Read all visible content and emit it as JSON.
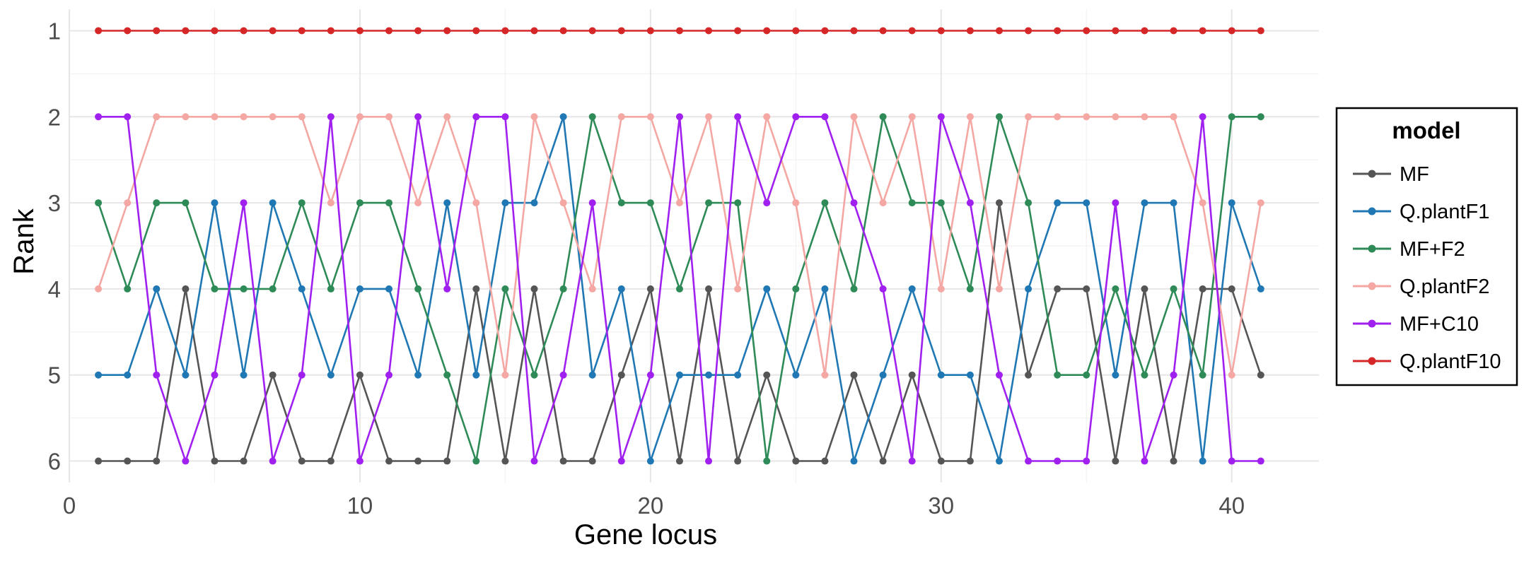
{
  "chart_data": {
    "type": "line",
    "xlabel": "Gene locus",
    "ylabel": "Rank",
    "xlim": [
      0,
      43
    ],
    "ylim": [
      6.25,
      0.75
    ],
    "y_reversed": true,
    "x_ticks": [
      0,
      10,
      20,
      30,
      40
    ],
    "x_tick_labels": [
      "0",
      "10",
      "20",
      "30",
      "40"
    ],
    "y_ticks": [
      1,
      2,
      3,
      4,
      5,
      6
    ],
    "y_tick_labels": [
      "1",
      "2",
      "3",
      "4",
      "5",
      "6"
    ],
    "grid": true,
    "legend": {
      "title": "model",
      "position": "right"
    },
    "x": [
      1,
      2,
      3,
      4,
      5,
      6,
      7,
      8,
      9,
      10,
      11,
      12,
      13,
      14,
      15,
      16,
      17,
      18,
      19,
      20,
      21,
      22,
      23,
      24,
      25,
      26,
      27,
      28,
      29,
      30,
      31,
      32,
      33,
      34,
      35,
      36,
      37,
      38,
      39,
      40,
      41
    ],
    "series": [
      {
        "name": "MF",
        "color": "#555555",
        "values": [
          6,
          6,
          6,
          4,
          6,
          6,
          5,
          6,
          6,
          5,
          6,
          6,
          6,
          4,
          6,
          4,
          6,
          6,
          5,
          4,
          6,
          4,
          6,
          5,
          6,
          6,
          5,
          6,
          5,
          6,
          6,
          3,
          5,
          4,
          4,
          6,
          4,
          6,
          4,
          4,
          5
        ]
      },
      {
        "name": "Q.plantF1",
        "color": "#1f78b4",
        "values": [
          5,
          5,
          4,
          5,
          3,
          5,
          3,
          4,
          5,
          4,
          4,
          5,
          3,
          5,
          3,
          3,
          2,
          5,
          4,
          6,
          5,
          5,
          5,
          4,
          5,
          4,
          6,
          5,
          4,
          5,
          5,
          6,
          4,
          3,
          3,
          5,
          3,
          3,
          6,
          3,
          4
        ]
      },
      {
        "name": "MF+F2",
        "color": "#2e8b57",
        "values": [
          3,
          4,
          3,
          3,
          4,
          4,
          4,
          3,
          4,
          3,
          3,
          4,
          5,
          6,
          4,
          5,
          4,
          2,
          3,
          3,
          4,
          3,
          3,
          6,
          4,
          3,
          4,
          2,
          3,
          3,
          4,
          2,
          3,
          5,
          5,
          4,
          5,
          4,
          5,
          2,
          2
        ]
      },
      {
        "name": "Q.plantF2",
        "color": "#f4a7a3",
        "values": [
          4,
          3,
          2,
          2,
          2,
          2,
          2,
          2,
          3,
          2,
          2,
          3,
          2,
          3,
          5,
          2,
          3,
          4,
          2,
          2,
          3,
          2,
          4,
          2,
          3,
          5,
          2,
          3,
          2,
          4,
          2,
          4,
          2,
          2,
          2,
          2,
          2,
          2,
          3,
          5,
          3
        ]
      },
      {
        "name": "MF+C10",
        "color": "#a020f0",
        "values": [
          2,
          2,
          5,
          6,
          5,
          3,
          6,
          5,
          2,
          6,
          5,
          2,
          4,
          2,
          2,
          6,
          5,
          3,
          6,
          5,
          2,
          6,
          2,
          3,
          2,
          2,
          3,
          4,
          6,
          2,
          3,
          5,
          6,
          6,
          6,
          3,
          6,
          5,
          2,
          6,
          6
        ]
      },
      {
        "name": "Q.plantF10",
        "color": "#d62728",
        "values": [
          1,
          1,
          1,
          1,
          1,
          1,
          1,
          1,
          1,
          1,
          1,
          1,
          1,
          1,
          1,
          1,
          1,
          1,
          1,
          1,
          1,
          1,
          1,
          1,
          1,
          1,
          1,
          1,
          1,
          1,
          1,
          1,
          1,
          1,
          1,
          1,
          1,
          1,
          1,
          1,
          1
        ]
      }
    ]
  },
  "colors": {
    "grid_major": "#e6e6e6",
    "grid_minor": "#f2f2f2",
    "tick_text": "#4d4d4d"
  }
}
